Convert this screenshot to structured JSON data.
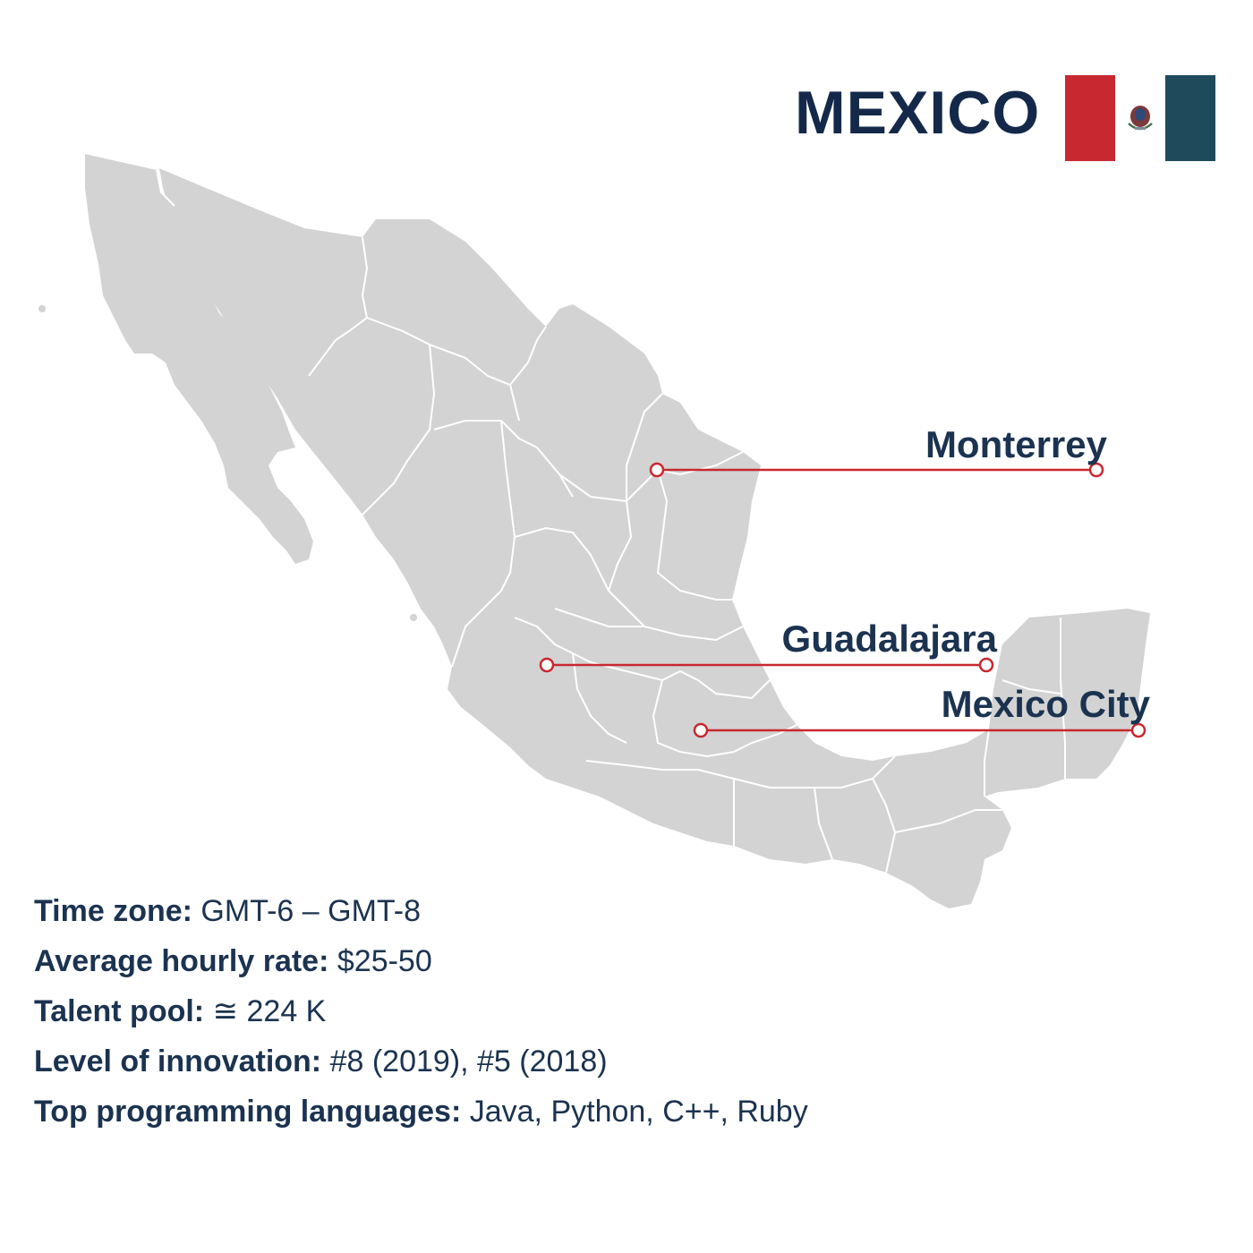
{
  "title": "MEXICO",
  "colors": {
    "land": "#d3d3d3",
    "borders": "#ffffff",
    "marker": "#c8282f",
    "text": "#1b3350",
    "flag_red": "#c8282f",
    "flag_green": "#1e4a5c"
  },
  "icons": {
    "flag": "mexico-flag-icon",
    "marker": "city-marker-icon"
  },
  "cities": [
    {
      "name": "Monterrey"
    },
    {
      "name": "Guadalajara"
    },
    {
      "name": "Mexico City"
    }
  ],
  "info": [
    {
      "label": "Time zone:",
      "value": "GMT-6 – GMT-8"
    },
    {
      "label": "Average hourly rate:",
      "value": "$25-50"
    },
    {
      "label": "Talent pool:",
      "value": "≅ 224 K"
    },
    {
      "label": "Level of innovation:",
      "value": "#8 (2019), #5 (2018)"
    },
    {
      "label": "Top programming languages:",
      "value": "Java, Python, C++, Ruby"
    }
  ]
}
